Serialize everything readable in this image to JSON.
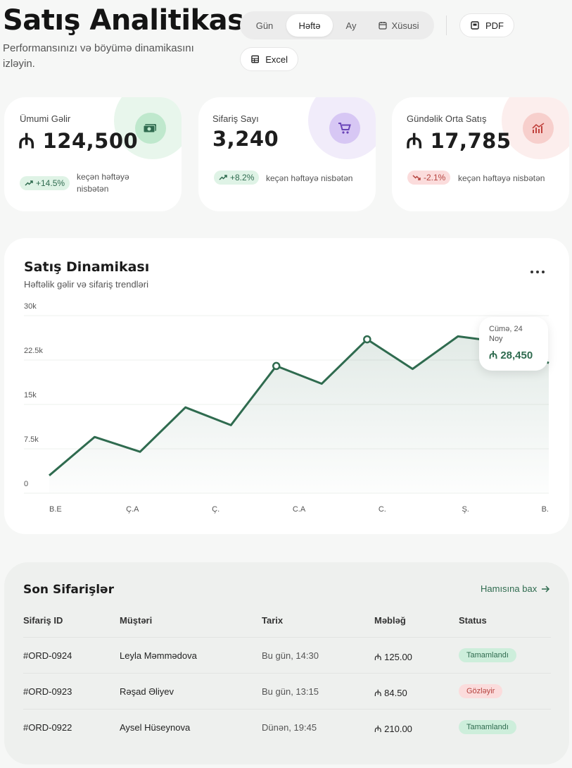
{
  "header": {
    "title": "Satış Analitikası",
    "subtitle": "Performansınızı və böyümə dinamikasını izləyin."
  },
  "period_tabs": [
    {
      "label": "Gün",
      "active": false
    },
    {
      "label": "Həftə",
      "active": true
    },
    {
      "label": "Ay",
      "active": false
    },
    {
      "label": "Xüsusi",
      "active": false,
      "icon": "calendar-icon"
    }
  ],
  "export": {
    "pdf_label": "PDF",
    "excel_label": "Excel"
  },
  "stats": [
    {
      "label": "Ümumi Gəlir",
      "value": "₼ 124,500",
      "change": "+14.5%",
      "trend": "up",
      "compare": "keçən həftəyə nisbətən",
      "icon": "money-icon",
      "accent": "#5aa57a"
    },
    {
      "label": "Sifariş Sayı",
      "value": "3,240",
      "change": "+8.2%",
      "trend": "up",
      "compare": "keçən həftəyə nisbətən",
      "icon": "cart-icon",
      "accent": "#7b55c9"
    },
    {
      "label": "Gündəlik Orta Satış",
      "value": "₼ 17,785",
      "change": "-2.1%",
      "trend": "down",
      "compare": "keçən həftəyə nisbətən",
      "icon": "chart-up-icon",
      "accent": "#d24a45"
    }
  ],
  "chart": {
    "title": "Satış Dinamikası",
    "subtitle": "Həftəlik gəlir və sifariş trendləri",
    "tooltip": {
      "date": "Cümə, 24 Noy",
      "value": "₼ 28,450"
    }
  },
  "chart_data": {
    "type": "area",
    "x": [
      0,
      1,
      2,
      3,
      4,
      5,
      6,
      7,
      8,
      9,
      10,
      11
    ],
    "values": [
      3000,
      9500,
      7000,
      14500,
      11500,
      21500,
      18500,
      26000,
      21000,
      26500,
      25500,
      22000
    ],
    "markers": [
      5,
      7,
      10
    ],
    "category_labels": [
      "B.E",
      "Ç.A",
      "Ç.",
      "C.A",
      "C.",
      "Ş.",
      "B."
    ],
    "ytick_labels": [
      "0",
      "7.5k",
      "15k",
      "22.5k",
      "30k"
    ],
    "ylim": [
      0,
      30000
    ],
    "grid": true,
    "color": "#2f6b4f"
  },
  "orders": {
    "title": "Son Sifarişlər",
    "see_all": "Hamısına bax",
    "columns": [
      "Sifariş ID",
      "Müştəri",
      "Tarix",
      "Məbləğ",
      "Status"
    ],
    "rows": [
      {
        "id": "#ORD-0924",
        "customer": "Leyla Məmmədova",
        "date": "Bu gün, 14:30",
        "amount": "₼ 125.00",
        "status": "Tamamlandı",
        "status_type": "done"
      },
      {
        "id": "#ORD-0923",
        "customer": "Rəşad Əliyev",
        "date": "Bu gün, 13:15",
        "amount": "₼ 84.50",
        "status": "Gözləyir",
        "status_type": "wait"
      },
      {
        "id": "#ORD-0922",
        "customer": "Aysel Hüseynova",
        "date": "Dünən, 19:45",
        "amount": "₼ 210.00",
        "status": "Tamamlandı",
        "status_type": "done"
      }
    ]
  }
}
